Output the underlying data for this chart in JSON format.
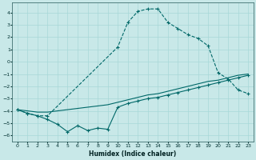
{
  "xlabel": "Humidex (Indice chaleur)",
  "ylabel": "",
  "bg_color": "#c8e8e8",
  "grid_color": "#a8d8d8",
  "line_color": "#006868",
  "xlim": [
    -0.5,
    23.5
  ],
  "ylim": [
    -6.5,
    4.8
  ],
  "yticks": [
    -6,
    -5,
    -4,
    -3,
    -2,
    -1,
    0,
    1,
    2,
    3,
    4
  ],
  "xticks": [
    0,
    1,
    2,
    3,
    4,
    5,
    6,
    7,
    8,
    9,
    10,
    11,
    12,
    13,
    14,
    15,
    16,
    17,
    18,
    19,
    20,
    21,
    22,
    23
  ],
  "curve1_x": [
    0,
    1,
    2,
    3,
    10,
    11,
    12,
    13,
    14,
    15,
    16,
    17,
    18,
    19,
    20,
    21,
    22,
    23
  ],
  "curve1_y": [
    -3.9,
    -4.2,
    -4.4,
    -4.4,
    1.2,
    3.2,
    4.1,
    4.3,
    4.3,
    3.2,
    2.7,
    2.2,
    1.9,
    1.3,
    -0.9,
    -1.4,
    -2.3,
    -2.6
  ],
  "curve2_x": [
    0,
    1,
    2,
    3,
    4,
    5,
    6,
    7,
    8,
    9,
    10,
    11,
    12,
    13,
    14,
    15,
    16,
    17,
    18,
    19,
    20,
    21,
    22,
    23
  ],
  "curve2_y": [
    -3.9,
    -4.0,
    -4.1,
    -4.1,
    -4.0,
    -3.9,
    -3.8,
    -3.7,
    -3.6,
    -3.5,
    -3.3,
    -3.1,
    -2.9,
    -2.7,
    -2.6,
    -2.4,
    -2.2,
    -2.0,
    -1.8,
    -1.6,
    -1.5,
    -1.3,
    -1.1,
    -1.0
  ],
  "curve3_x": [
    0,
    1,
    2,
    3,
    4,
    5,
    6,
    7,
    8,
    9,
    10,
    11,
    12,
    13,
    14,
    15,
    16,
    17,
    18,
    19,
    20,
    21,
    22,
    23
  ],
  "curve3_y": [
    -3.9,
    -4.2,
    -4.4,
    -4.7,
    -5.1,
    -5.7,
    -5.2,
    -5.6,
    -5.4,
    -5.5,
    -3.7,
    -3.4,
    -3.2,
    -3.0,
    -2.9,
    -2.7,
    -2.5,
    -2.3,
    -2.1,
    -1.9,
    -1.7,
    -1.5,
    -1.3,
    -1.1
  ]
}
